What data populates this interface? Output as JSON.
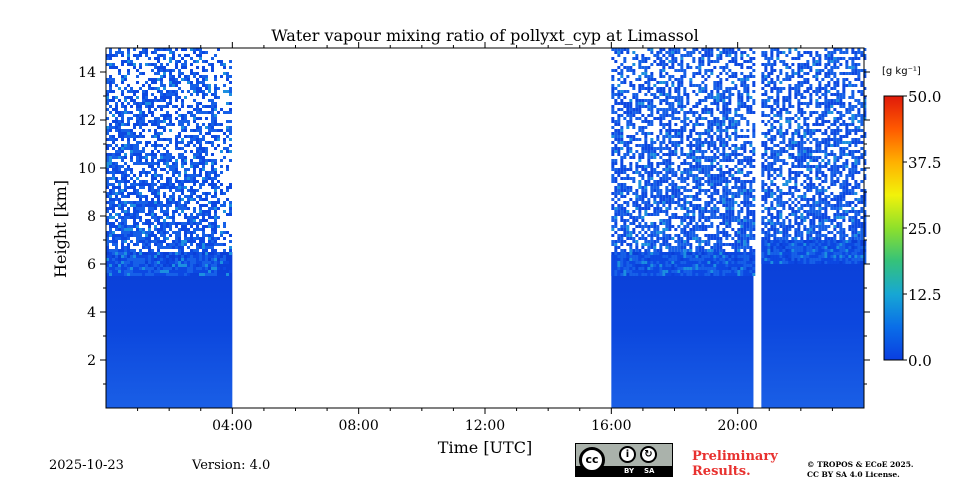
{
  "chart_data": {
    "type": "heatmap",
    "title": "Water vapour mixing ratio of pollyxt_cyp at Limassol",
    "xlabel": "Time [UTC]",
    "ylabel": "Height [km]",
    "xlim_hours": [
      0,
      24
    ],
    "ylim_km": [
      0,
      15
    ],
    "x_ticks": [
      {
        "hour": 4,
        "label": "04:00"
      },
      {
        "hour": 8,
        "label": "08:00"
      },
      {
        "hour": 12,
        "label": "12:00"
      },
      {
        "hour": 16,
        "label": "16:00"
      },
      {
        "hour": 20,
        "label": "20:00"
      }
    ],
    "y_ticks": [
      {
        "km": 2,
        "label": "2"
      },
      {
        "km": 4,
        "label": "4"
      },
      {
        "km": 6,
        "label": "6"
      },
      {
        "km": 8,
        "label": "8"
      },
      {
        "km": 10,
        "label": "10"
      },
      {
        "km": 12,
        "label": "12"
      },
      {
        "km": 14,
        "label": "14"
      }
    ],
    "colorbar": {
      "unit_label": "[g kg⁻¹]",
      "range": [
        0,
        50
      ],
      "ticks": [
        "0.0",
        "12.5",
        "25.0",
        "37.5",
        "50.0"
      ],
      "tick_values": [
        0,
        12.5,
        25,
        37.5,
        50
      ],
      "colors": [
        "#0a3ee0",
        "#0a6ee8",
        "#17a7d4",
        "#35c27a",
        "#8ee02b",
        "#f2f20a",
        "#ffb000",
        "#ff5a00",
        "#e01a0a"
      ]
    },
    "data_segments": [
      {
        "start_hour": 0.0,
        "end_hour": 4.0,
        "dense_top_km": 6.5,
        "noisy_top_km": 15.0,
        "typical_value": 1.0
      },
      {
        "start_hour": 16.0,
        "end_hour": 20.5,
        "dense_top_km": 6.5,
        "noisy_top_km": 15.0,
        "typical_value": 1.0
      },
      {
        "start_hour": 20.75,
        "end_hour": 24.0,
        "dense_top_km": 7.0,
        "noisy_top_km": 15.0,
        "typical_value": 1.0
      }
    ],
    "no_data_gaps": [
      {
        "start_hour": 4.0,
        "end_hour": 16.0
      },
      {
        "start_hour": 20.5,
        "end_hour": 20.75
      }
    ]
  },
  "footer": {
    "date": "2025-10-23",
    "version": "Version: 4.0",
    "preliminary_line1": "Preliminary",
    "preliminary_line2": "Results.",
    "copyright_line1": "© TROPOS & ECoE 2025.",
    "copyright_line2": "CC BY SA 4.0 License.",
    "license_badge": {
      "cc": "cc",
      "by": "BY",
      "sa": "SA"
    }
  }
}
